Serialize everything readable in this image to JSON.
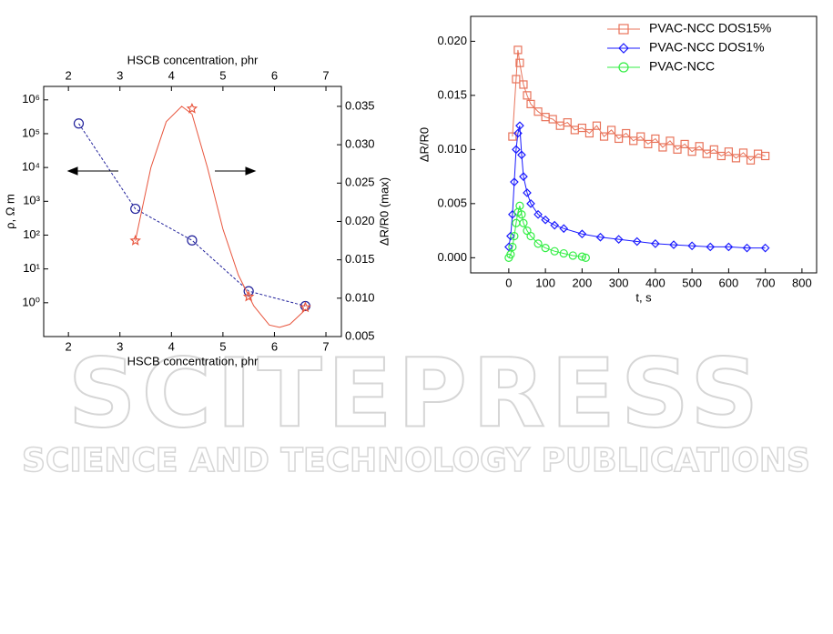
{
  "chart_data": [
    {
      "type": "scatter",
      "xlabel": "HSCB concentration, phr",
      "x2label": "HSCB concentration, phr",
      "ylabel": "ρ, Ω m",
      "y2label": "ΔR/R0 (max)",
      "xlim": [
        1.52,
        7.3
      ],
      "xticks": [
        2,
        3,
        4,
        5,
        6,
        7
      ],
      "x2ticks": [
        2,
        3,
        4,
        5,
        6,
        7
      ],
      "ylog": true,
      "ylim": [
        0.1,
        2500000
      ],
      "yticks": [
        {
          "value": 1,
          "label": "10⁰"
        },
        {
          "value": 10,
          "label": "10¹"
        },
        {
          "value": 100,
          "label": "10²"
        },
        {
          "value": 1000,
          "label": "10³"
        },
        {
          "value": 10000,
          "label": "10⁴"
        },
        {
          "value": 100000,
          "label": "10⁵"
        },
        {
          "value": 1000000,
          "label": "10⁶"
        }
      ],
      "y2lim": [
        0.005,
        0.0376
      ],
      "y2ticks": [
        {
          "value": 0.005,
          "label": "0.005"
        },
        {
          "value": 0.01,
          "label": "0.010"
        },
        {
          "value": 0.015,
          "label": "0.015"
        },
        {
          "value": 0.02,
          "label": "0.020"
        },
        {
          "value": 0.025,
          "label": "0.025"
        },
        {
          "value": 0.03,
          "label": "0.030"
        },
        {
          "value": 0.035,
          "label": "0.035"
        }
      ],
      "series": [
        {
          "color": "#1f1f9a",
          "marker": "circle",
          "line": "dashed",
          "x": [
            2.2,
            3.3,
            4.4,
            5.5,
            6.6
          ],
          "values": [
            200000,
            600,
            70,
            2.2,
            0.8
          ]
        },
        {
          "color": "#e8553d",
          "marker": "star",
          "line": "none",
          "axis": "y2",
          "x": [
            3.3,
            4.4,
            5.5,
            6.6
          ],
          "values": [
            0.0175,
            0.0347,
            0.0102,
            0.0088
          ]
        },
        {
          "color": "#e8553d",
          "marker": "none",
          "line": "solid",
          "axis": "y2",
          "x": [
            3.3,
            3.6,
            3.9,
            4.2,
            4.4,
            4.7,
            5.0,
            5.3,
            5.6,
            5.9,
            6.1,
            6.3,
            6.6
          ],
          "values": [
            0.0175,
            0.027,
            0.033,
            0.035,
            0.034,
            0.027,
            0.019,
            0.013,
            0.009,
            0.0065,
            0.0062,
            0.0066,
            0.0085
          ]
        }
      ]
    },
    {
      "type": "scatter",
      "xlabel": "t, s",
      "ylabel": "ΔR/R0",
      "legend": "top-right",
      "xlim": [
        -104,
        840
      ],
      "xticks": [
        0,
        100,
        200,
        300,
        400,
        500,
        600,
        700,
        800
      ],
      "ylim": [
        -0.0014,
        0.0223
      ],
      "yticks": [
        {
          "value": 0,
          "label": "0.000"
        },
        {
          "value": 0.005,
          "label": "0.005"
        },
        {
          "value": 0.01,
          "label": "0.010"
        },
        {
          "value": 0.015,
          "label": "0.015"
        },
        {
          "value": 0.02,
          "label": "0.020"
        }
      ],
      "series": [
        {
          "name": "PVAC-NCC DOS15%",
          "color": "#e8735a",
          "marker": "square",
          "line": "solid",
          "x": [
            10,
            20,
            25,
            30,
            40,
            50,
            60,
            80,
            100,
            120,
            140,
            160,
            180,
            200,
            220,
            240,
            260,
            280,
            300,
            320,
            340,
            360,
            380,
            400,
            420,
            440,
            460,
            480,
            500,
            520,
            540,
            560,
            580,
            600,
            620,
            640,
            660,
            680,
            700
          ],
          "values": [
            0.0112,
            0.0165,
            0.0192,
            0.018,
            0.016,
            0.015,
            0.0142,
            0.0135,
            0.013,
            0.0128,
            0.0122,
            0.0125,
            0.0118,
            0.012,
            0.0115,
            0.0122,
            0.0112,
            0.0118,
            0.011,
            0.0115,
            0.0108,
            0.0112,
            0.0105,
            0.011,
            0.0102,
            0.0108,
            0.01,
            0.0105,
            0.0098,
            0.0103,
            0.0096,
            0.01,
            0.0094,
            0.0098,
            0.0092,
            0.0097,
            0.009,
            0.0096,
            0.0094
          ]
        },
        {
          "name": "PVAC-NCC DOS1%",
          "color": "#1a1aff",
          "marker": "diamond",
          "line": "solid",
          "x": [
            0,
            5,
            10,
            15,
            20,
            25,
            30,
            35,
            40,
            50,
            60,
            80,
            100,
            125,
            150,
            200,
            250,
            300,
            350,
            400,
            450,
            500,
            550,
            600,
            650,
            700
          ],
          "values": [
            0.001,
            0.002,
            0.004,
            0.007,
            0.01,
            0.0115,
            0.0122,
            0.0095,
            0.0075,
            0.006,
            0.005,
            0.004,
            0.0035,
            0.003,
            0.0027,
            0.0022,
            0.0019,
            0.0017,
            0.0015,
            0.0013,
            0.0012,
            0.0011,
            0.001,
            0.001,
            0.0009,
            0.0009
          ]
        },
        {
          "name": "PVAC-NCC",
          "color": "#33ee44",
          "marker": "circle",
          "line": "solid",
          "x": [
            0,
            5,
            10,
            15,
            20,
            25,
            30,
            35,
            40,
            50,
            60,
            80,
            100,
            125,
            150,
            175,
            200,
            210
          ],
          "values": [
            0,
            0.0003,
            0.001,
            0.002,
            0.0032,
            0.0042,
            0.0048,
            0.004,
            0.0032,
            0.0025,
            0.002,
            0.0013,
            0.0009,
            0.0006,
            0.0004,
            0.0002,
            0.0001,
            0
          ]
        }
      ]
    }
  ],
  "watermark": {
    "title": "SCITEPRESS",
    "subtitle": "SCIENCE AND TECHNOLOGY PUBLICATIONS"
  }
}
